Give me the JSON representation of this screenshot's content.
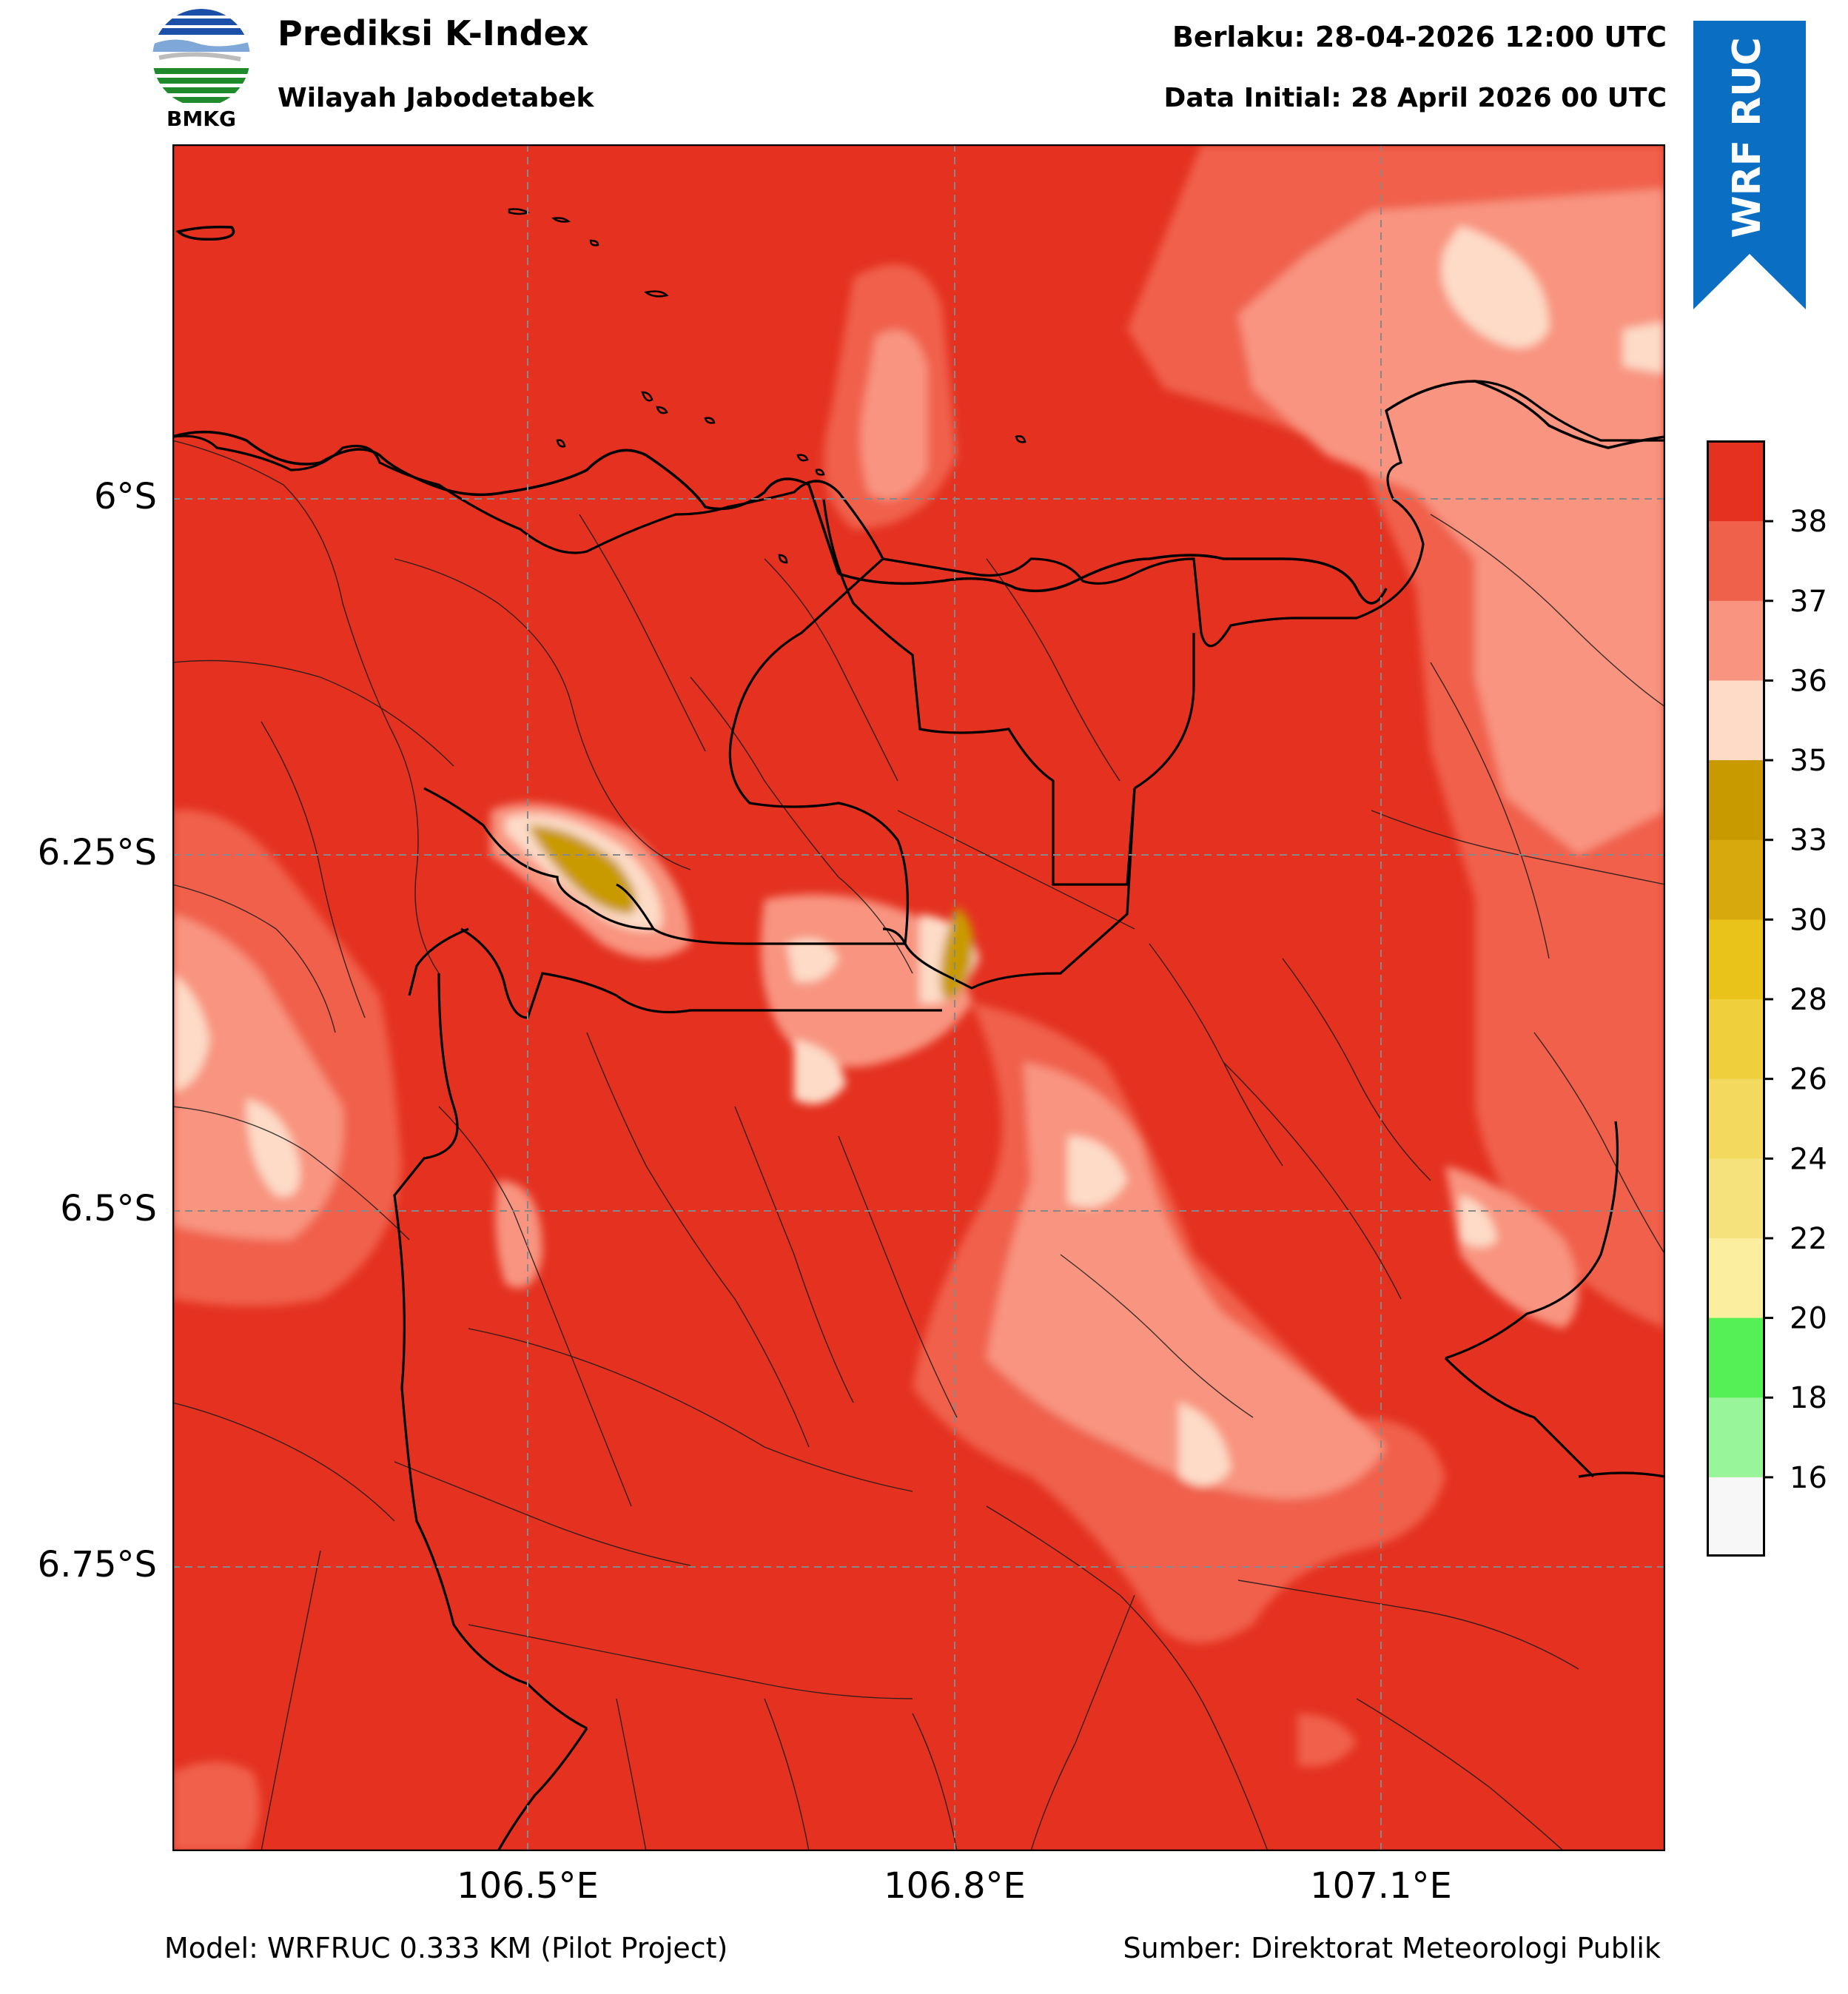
{
  "header": {
    "title": "Prediksi K-Index",
    "subtitle": "Wilayah Jabodetabek",
    "valid_time": "Berlaku: 28-04-2026 12:00 UTC",
    "init_time": "Data Initial: 28 April 2026 00 UTC"
  },
  "logo": {
    "text": "BMKG",
    "icon": "bmkg-logo-icon"
  },
  "ribbon": {
    "text": "WRF RUC",
    "color": "#0a6fc2"
  },
  "axes": {
    "lat_labels": [
      "6°S",
      "6.25°S",
      "6.5°S",
      "6.75°S"
    ],
    "lon_labels": [
      "106.5°E",
      "106.8°E",
      "107.1°E"
    ]
  },
  "colorbar": {
    "ticks": [
      "38",
      "37",
      "36",
      "35",
      "33",
      "30",
      "28",
      "26",
      "24",
      "22",
      "20",
      "18",
      "16"
    ],
    "colors_top_to_bottom": [
      "#e43120",
      "#f0614b",
      "#f89480",
      "#fddbc7",
      "#c99a00",
      "#d7a90c",
      "#e9c21a",
      "#efcf3c",
      "#f3da5e",
      "#f6e27d",
      "#fbee9e",
      "#55f055",
      "#99f599",
      "#f7f7f7"
    ]
  },
  "footer": {
    "model": "Model: WRFRUC 0.333 KM (Pilot Project)",
    "source": "Sumber: Direktorat Meteorologi Publik"
  }
}
